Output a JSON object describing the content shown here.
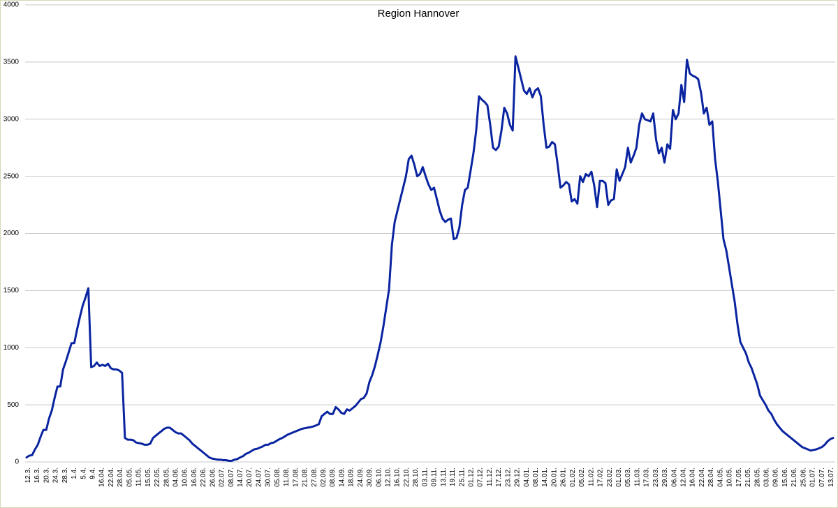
{
  "chart_data": {
    "type": "line",
    "title": "Region Hannover",
    "xlabel": "",
    "ylabel": "",
    "ylim": [
      0,
      4000
    ],
    "yticks": [
      0,
      500,
      1000,
      1500,
      2000,
      2500,
      3000,
      3500,
      4000
    ],
    "grid": true,
    "legend": "none",
    "line_color": "#0a24a0",
    "x_tick_labels": [
      "12.3.",
      "16.3.",
      "20.3.",
      "24.3.",
      "28.3.",
      "1.4.",
      "5.4.",
      "9.4.",
      "16.04.",
      "22.04.",
      "28.04.",
      "05.05.",
      "11.05.",
      "15.05.",
      "22.05.",
      "28.05.",
      "04.06.",
      "10.06.",
      "16.06.",
      "22.06.",
      "26.06.",
      "02.07.",
      "08.07.",
      "14.07.",
      "20.07.",
      "24.07.",
      "30.07.",
      "05.08.",
      "11.08.",
      "17.08.",
      "21.08.",
      "27.08.",
      "02.09.",
      "08.09.",
      "14.09.",
      "18.09.",
      "24.09.",
      "30.09.",
      "06.10.",
      "12.10.",
      "16.10.",
      "22.10.",
      "28.10.",
      "03.11.",
      "09.11.",
      "13.11.",
      "19.11.",
      "25.11.",
      "01.12.",
      "07.12.",
      "11.12.",
      "17.12.",
      "23.12.",
      "29.12.",
      "04.01.",
      "08.01.",
      "14.01.",
      "20.01.",
      "26.01.",
      "01.02.",
      "05.02.",
      "11.02.",
      "17.02.",
      "23.02.",
      "01.03.",
      "05.03.",
      "11.03.",
      "17.03.",
      "23.03.",
      "29.03.",
      "06.04.",
      "12.04.",
      "16.04.",
      "22.04.",
      "28.04.",
      "04.05.",
      "10.05.",
      "17.05.",
      "21.05.",
      "28.05.",
      "03.06.",
      "09.06.",
      "15.06.",
      "21.06.",
      "25.06.",
      "01.07.",
      "07.07.",
      "13.07."
    ],
    "series": [
      {
        "values": [
          40,
          55,
          60,
          110,
          150,
          220,
          280,
          280,
          380,
          450,
          560,
          660,
          660,
          810,
          880,
          960,
          1040,
          1040,
          1160,
          1270,
          1370,
          1440,
          1520,
          830,
          840,
          870,
          840,
          850,
          840,
          860,
          820,
          810,
          810,
          800,
          780,
          210,
          195,
          195,
          190,
          170,
          165,
          160,
          150,
          150,
          160,
          210,
          230,
          250,
          270,
          290,
          300,
          300,
          280,
          260,
          250,
          250,
          230,
          210,
          190,
          160,
          140,
          120,
          100,
          80,
          60,
          40,
          30,
          25,
          20,
          20,
          15,
          15,
          10,
          10,
          20,
          25,
          40,
          50,
          70,
          80,
          95,
          110,
          115,
          125,
          135,
          150,
          150,
          165,
          170,
          185,
          200,
          210,
          225,
          240,
          250,
          260,
          270,
          280,
          290,
          295,
          300,
          305,
          310,
          320,
          330,
          400,
          420,
          440,
          420,
          420,
          480,
          460,
          430,
          420,
          460,
          450,
          470,
          490,
          520,
          550,
          560,
          600,
          700,
          760,
          840,
          940,
          1050,
          1190,
          1350,
          1510,
          1900,
          2100,
          2200,
          2300,
          2400,
          2500,
          2650,
          2680,
          2600,
          2500,
          2520,
          2580,
          2500,
          2430,
          2380,
          2400,
          2300,
          2200,
          2130,
          2100,
          2120,
          2130,
          1950,
          1960,
          2050,
          2250,
          2380,
          2400,
          2550,
          2700,
          2900,
          3200,
          3170,
          3150,
          3120,
          2950,
          2750,
          2730,
          2760,
          2900,
          3100,
          3050,
          2950,
          2900,
          3550,
          3450,
          3350,
          3250,
          3220,
          3270,
          3190,
          3250,
          3270,
          3200,
          2950,
          2750,
          2760,
          2800,
          2780,
          2600,
          2400,
          2420,
          2450,
          2430,
          2280,
          2300,
          2260,
          2500,
          2450,
          2520,
          2500,
          2540,
          2420,
          2230,
          2460,
          2460,
          2440,
          2250,
          2290,
          2300,
          2560,
          2460,
          2520,
          2580,
          2750,
          2620,
          2680,
          2750,
          2950,
          3050,
          3000,
          2990,
          2980,
          3050,
          2820,
          2700,
          2750,
          2620,
          2780,
          2740,
          3080,
          3000,
          3050,
          3300,
          3150,
          3520,
          3400,
          3380,
          3370,
          3350,
          3230,
          3050,
          3100,
          2950,
          2980,
          2650,
          2450,
          2200,
          1950,
          1850,
          1700,
          1550,
          1400,
          1200,
          1050,
          1000,
          950,
          870,
          820,
          750,
          680,
          580,
          540,
          500,
          450,
          420,
          370,
          330,
          300,
          270,
          250,
          230,
          210,
          190,
          170,
          150,
          130,
          120,
          110,
          100,
          105,
          110,
          120,
          130,
          150,
          180,
          200,
          210
        ]
      }
    ]
  }
}
